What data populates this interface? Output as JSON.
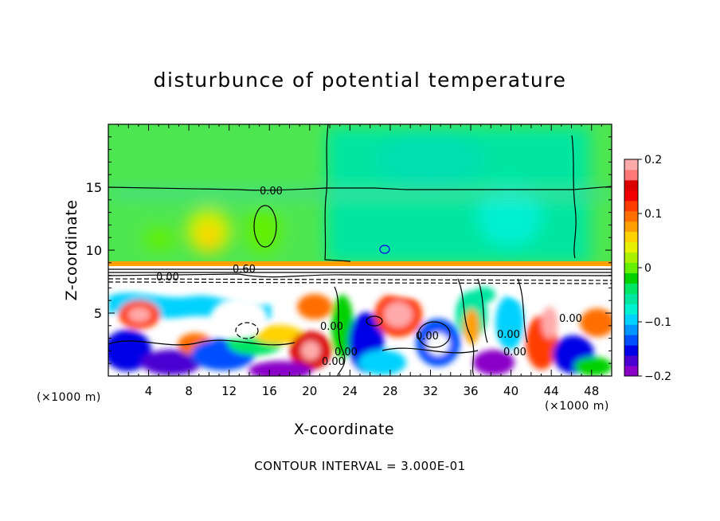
{
  "chart_data": {
    "type": "heatmap",
    "title": "disturbunce of potential temperature",
    "xlabel": "X-coordinate",
    "ylabel": "Z-coordinate",
    "x_unit": "(×1000 m)",
    "x_ticks": [
      4,
      8,
      12,
      16,
      20,
      24,
      28,
      32,
      36,
      40,
      44,
      48
    ],
    "y_ticks": [
      5,
      10,
      15
    ],
    "xlim": [
      0,
      50
    ],
    "ylim": [
      0,
      20
    ],
    "colorbar": {
      "ticks": [
        "0.2",
        "0.1",
        "0",
        "−0.1",
        "−0.2"
      ],
      "range": [
        -0.2,
        0.2
      ],
      "colors": [
        "#8a00c8",
        "#4b00d2",
        "#0000e6",
        "#0050ff",
        "#0096ff",
        "#00d2ff",
        "#00f0d2",
        "#00e6a0",
        "#00e664",
        "#00d200",
        "#64f000",
        "#aaf000",
        "#e6f000",
        "#ffd200",
        "#ffa000",
        "#ff6e00",
        "#ff3c00",
        "#f00000",
        "#dc0000",
        "#ff7878",
        "#ffaaaa"
      ]
    },
    "contour_labels": [
      "0.00",
      "0.60",
      "0.00",
      "0.00",
      "0.00",
      "0.00",
      "0.00",
      "0.00",
      "0.00",
      "0.00"
    ],
    "caption": "CONTOUR INTERVAL = 3.000E-01"
  }
}
